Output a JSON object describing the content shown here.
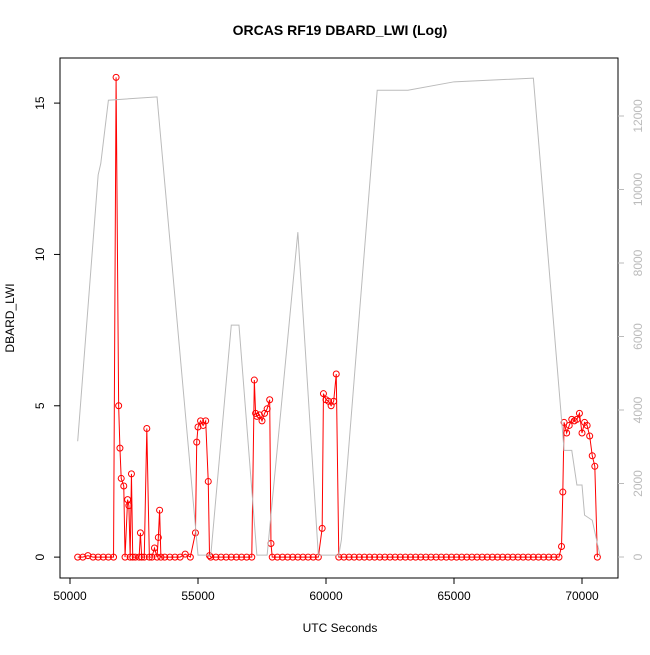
{
  "chart_data": {
    "type": "line",
    "title": "ORCAS RF19 DBARD_LWI (Log)",
    "xlabel": "UTC Seconds",
    "ylabel": "DBARD_LWI",
    "xlim": [
      49609,
      71406
    ],
    "xticks": [
      50000,
      55000,
      60000,
      65000,
      70000
    ],
    "ylim": [
      -0.69,
      16.49
    ],
    "yticks": [
      0,
      5,
      10,
      15
    ],
    "y2lim": [
      -571,
      13578
    ],
    "y2ticks": [
      0,
      2000,
      4000,
      6000,
      8000,
      10000,
      12000
    ],
    "series": [
      {
        "color": "#ff0000",
        "marker": "circle",
        "x": [
          50300,
          50500,
          50700,
          50900,
          51100,
          51300,
          51500,
          51700,
          51800,
          51900,
          51950,
          52000,
          52100,
          52150,
          52250,
          52300,
          52350,
          52400,
          52450,
          52550,
          52700,
          52750,
          52800,
          52900,
          53000,
          53100,
          53200,
          53300,
          53400,
          53450,
          53500,
          53550,
          53700,
          53900,
          54100,
          54300,
          54500,
          54700,
          54900,
          54950,
          55000,
          55100,
          55200,
          55300,
          55400,
          55450,
          55500,
          55700,
          55900,
          56100,
          56300,
          56500,
          56700,
          56900,
          57100,
          57200,
          57250,
          57300,
          57400,
          57500,
          57600,
          57700,
          57800,
          57850,
          57900,
          58100,
          58300,
          58500,
          58700,
          58900,
          59100,
          59300,
          59500,
          59700,
          59850,
          59900,
          60000,
          60100,
          60200,
          60300,
          60400,
          60500,
          60700,
          60900,
          61100,
          61300,
          61500,
          61700,
          61900,
          62100,
          62300,
          62500,
          62700,
          62900,
          63100,
          63300,
          63500,
          63700,
          63900,
          64100,
          64300,
          64500,
          64700,
          64900,
          65100,
          65300,
          65500,
          65700,
          65900,
          66100,
          66300,
          66500,
          66700,
          66900,
          67100,
          67300,
          67500,
          67700,
          67900,
          68100,
          68300,
          68500,
          68700,
          68900,
          69100,
          69200,
          69250,
          69300,
          69400,
          69500,
          69600,
          69700,
          69800,
          69900,
          70000,
          70100,
          70200,
          70300,
          70400,
          70500,
          70600
        ],
        "values": [
          0,
          0,
          0.05,
          0,
          0,
          0,
          0,
          0,
          15.85,
          5.0,
          3.6,
          2.6,
          2.35,
          0,
          1.9,
          1.7,
          0,
          2.75,
          0,
          0,
          0,
          0.8,
          0,
          0,
          4.25,
          0,
          0,
          0.3,
          0,
          0.65,
          1.55,
          0,
          0,
          0,
          0,
          0,
          0.1,
          0,
          0.8,
          3.8,
          4.3,
          4.5,
          4.35,
          4.5,
          2.5,
          0.05,
          0,
          0,
          0,
          0,
          0,
          0,
          0,
          0,
          0,
          5.85,
          4.75,
          4.65,
          4.7,
          4.5,
          4.75,
          4.9,
          5.2,
          0.45,
          0,
          0,
          0,
          0,
          0,
          0,
          0,
          0,
          0,
          0,
          0.95,
          5.4,
          5.2,
          5.15,
          5.0,
          5.15,
          6.05,
          0,
          0,
          0,
          0,
          0,
          0,
          0,
          0,
          0,
          0,
          0,
          0,
          0,
          0,
          0,
          0,
          0,
          0,
          0,
          0,
          0,
          0,
          0,
          0,
          0,
          0,
          0,
          0,
          0,
          0,
          0,
          0,
          0,
          0,
          0,
          0,
          0,
          0,
          0,
          0,
          0,
          0,
          0,
          0,
          0.35,
          2.15,
          4.45,
          4.1,
          4.35,
          4.55,
          4.5,
          4.55,
          4.75,
          4.1,
          4.45,
          4.35,
          4.0,
          3.35,
          3.0,
          0
        ]
      },
      {
        "color": "#bbbbbb",
        "axis": "y2",
        "x": [
          50300,
          51100,
          51200,
          51500,
          53400,
          55000,
          55500,
          56300,
          56600,
          57300,
          57700,
          58900,
          59700,
          60500,
          60600,
          62000,
          63200,
          65000,
          68100,
          69300,
          69600,
          69800,
          70000,
          70100,
          70400,
          70700
        ],
        "values": [
          3150,
          10400,
          10700,
          12430,
          12520,
          50,
          50,
          6310,
          6310,
          50,
          50,
          8840,
          50,
          50,
          460,
          12700,
          12700,
          12930,
          13030,
          2900,
          2900,
          1960,
          1960,
          1140,
          1000,
          50
        ]
      }
    ]
  }
}
